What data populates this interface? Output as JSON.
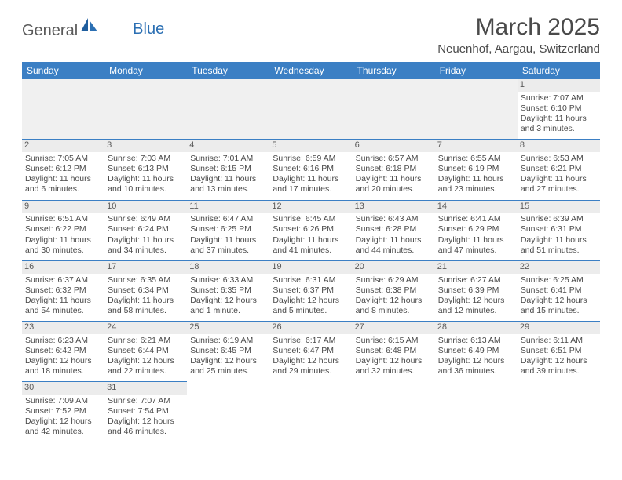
{
  "logo": {
    "general": "General",
    "blue": "Blue"
  },
  "title": "March 2025",
  "subtitle": "Neuenhof, Aargau, Switzerland",
  "colors": {
    "header_bg": "#3b7fc4",
    "header_text": "#ffffff",
    "cell_border": "#3b7fc4",
    "daynum_bg": "#ececec",
    "empty_bg": "#f0f0f0",
    "text": "#4a4a4a",
    "logo_gray": "#5a5a5a",
    "logo_blue": "#2b6fb3"
  },
  "day_headers": [
    "Sunday",
    "Monday",
    "Tuesday",
    "Wednesday",
    "Thursday",
    "Friday",
    "Saturday"
  ],
  "weeks": [
    [
      null,
      null,
      null,
      null,
      null,
      null,
      {
        "n": "1",
        "sr": "Sunrise: 7:07 AM",
        "ss": "Sunset: 6:10 PM",
        "d1": "Daylight: 11 hours",
        "d2": "and 3 minutes."
      }
    ],
    [
      {
        "n": "2",
        "sr": "Sunrise: 7:05 AM",
        "ss": "Sunset: 6:12 PM",
        "d1": "Daylight: 11 hours",
        "d2": "and 6 minutes."
      },
      {
        "n": "3",
        "sr": "Sunrise: 7:03 AM",
        "ss": "Sunset: 6:13 PM",
        "d1": "Daylight: 11 hours",
        "d2": "and 10 minutes."
      },
      {
        "n": "4",
        "sr": "Sunrise: 7:01 AM",
        "ss": "Sunset: 6:15 PM",
        "d1": "Daylight: 11 hours",
        "d2": "and 13 minutes."
      },
      {
        "n": "5",
        "sr": "Sunrise: 6:59 AM",
        "ss": "Sunset: 6:16 PM",
        "d1": "Daylight: 11 hours",
        "d2": "and 17 minutes."
      },
      {
        "n": "6",
        "sr": "Sunrise: 6:57 AM",
        "ss": "Sunset: 6:18 PM",
        "d1": "Daylight: 11 hours",
        "d2": "and 20 minutes."
      },
      {
        "n": "7",
        "sr": "Sunrise: 6:55 AM",
        "ss": "Sunset: 6:19 PM",
        "d1": "Daylight: 11 hours",
        "d2": "and 23 minutes."
      },
      {
        "n": "8",
        "sr": "Sunrise: 6:53 AM",
        "ss": "Sunset: 6:21 PM",
        "d1": "Daylight: 11 hours",
        "d2": "and 27 minutes."
      }
    ],
    [
      {
        "n": "9",
        "sr": "Sunrise: 6:51 AM",
        "ss": "Sunset: 6:22 PM",
        "d1": "Daylight: 11 hours",
        "d2": "and 30 minutes."
      },
      {
        "n": "10",
        "sr": "Sunrise: 6:49 AM",
        "ss": "Sunset: 6:24 PM",
        "d1": "Daylight: 11 hours",
        "d2": "and 34 minutes."
      },
      {
        "n": "11",
        "sr": "Sunrise: 6:47 AM",
        "ss": "Sunset: 6:25 PM",
        "d1": "Daylight: 11 hours",
        "d2": "and 37 minutes."
      },
      {
        "n": "12",
        "sr": "Sunrise: 6:45 AM",
        "ss": "Sunset: 6:26 PM",
        "d1": "Daylight: 11 hours",
        "d2": "and 41 minutes."
      },
      {
        "n": "13",
        "sr": "Sunrise: 6:43 AM",
        "ss": "Sunset: 6:28 PM",
        "d1": "Daylight: 11 hours",
        "d2": "and 44 minutes."
      },
      {
        "n": "14",
        "sr": "Sunrise: 6:41 AM",
        "ss": "Sunset: 6:29 PM",
        "d1": "Daylight: 11 hours",
        "d2": "and 47 minutes."
      },
      {
        "n": "15",
        "sr": "Sunrise: 6:39 AM",
        "ss": "Sunset: 6:31 PM",
        "d1": "Daylight: 11 hours",
        "d2": "and 51 minutes."
      }
    ],
    [
      {
        "n": "16",
        "sr": "Sunrise: 6:37 AM",
        "ss": "Sunset: 6:32 PM",
        "d1": "Daylight: 11 hours",
        "d2": "and 54 minutes."
      },
      {
        "n": "17",
        "sr": "Sunrise: 6:35 AM",
        "ss": "Sunset: 6:34 PM",
        "d1": "Daylight: 11 hours",
        "d2": "and 58 minutes."
      },
      {
        "n": "18",
        "sr": "Sunrise: 6:33 AM",
        "ss": "Sunset: 6:35 PM",
        "d1": "Daylight: 12 hours",
        "d2": "and 1 minute."
      },
      {
        "n": "19",
        "sr": "Sunrise: 6:31 AM",
        "ss": "Sunset: 6:37 PM",
        "d1": "Daylight: 12 hours",
        "d2": "and 5 minutes."
      },
      {
        "n": "20",
        "sr": "Sunrise: 6:29 AM",
        "ss": "Sunset: 6:38 PM",
        "d1": "Daylight: 12 hours",
        "d2": "and 8 minutes."
      },
      {
        "n": "21",
        "sr": "Sunrise: 6:27 AM",
        "ss": "Sunset: 6:39 PM",
        "d1": "Daylight: 12 hours",
        "d2": "and 12 minutes."
      },
      {
        "n": "22",
        "sr": "Sunrise: 6:25 AM",
        "ss": "Sunset: 6:41 PM",
        "d1": "Daylight: 12 hours",
        "d2": "and 15 minutes."
      }
    ],
    [
      {
        "n": "23",
        "sr": "Sunrise: 6:23 AM",
        "ss": "Sunset: 6:42 PM",
        "d1": "Daylight: 12 hours",
        "d2": "and 18 minutes."
      },
      {
        "n": "24",
        "sr": "Sunrise: 6:21 AM",
        "ss": "Sunset: 6:44 PM",
        "d1": "Daylight: 12 hours",
        "d2": "and 22 minutes."
      },
      {
        "n": "25",
        "sr": "Sunrise: 6:19 AM",
        "ss": "Sunset: 6:45 PM",
        "d1": "Daylight: 12 hours",
        "d2": "and 25 minutes."
      },
      {
        "n": "26",
        "sr": "Sunrise: 6:17 AM",
        "ss": "Sunset: 6:47 PM",
        "d1": "Daylight: 12 hours",
        "d2": "and 29 minutes."
      },
      {
        "n": "27",
        "sr": "Sunrise: 6:15 AM",
        "ss": "Sunset: 6:48 PM",
        "d1": "Daylight: 12 hours",
        "d2": "and 32 minutes."
      },
      {
        "n": "28",
        "sr": "Sunrise: 6:13 AM",
        "ss": "Sunset: 6:49 PM",
        "d1": "Daylight: 12 hours",
        "d2": "and 36 minutes."
      },
      {
        "n": "29",
        "sr": "Sunrise: 6:11 AM",
        "ss": "Sunset: 6:51 PM",
        "d1": "Daylight: 12 hours",
        "d2": "and 39 minutes."
      }
    ],
    [
      {
        "n": "30",
        "sr": "Sunrise: 7:09 AM",
        "ss": "Sunset: 7:52 PM",
        "d1": "Daylight: 12 hours",
        "d2": "and 42 minutes."
      },
      {
        "n": "31",
        "sr": "Sunrise: 7:07 AM",
        "ss": "Sunset: 7:54 PM",
        "d1": "Daylight: 12 hours",
        "d2": "and 46 minutes."
      },
      null,
      null,
      null,
      null,
      null
    ]
  ]
}
